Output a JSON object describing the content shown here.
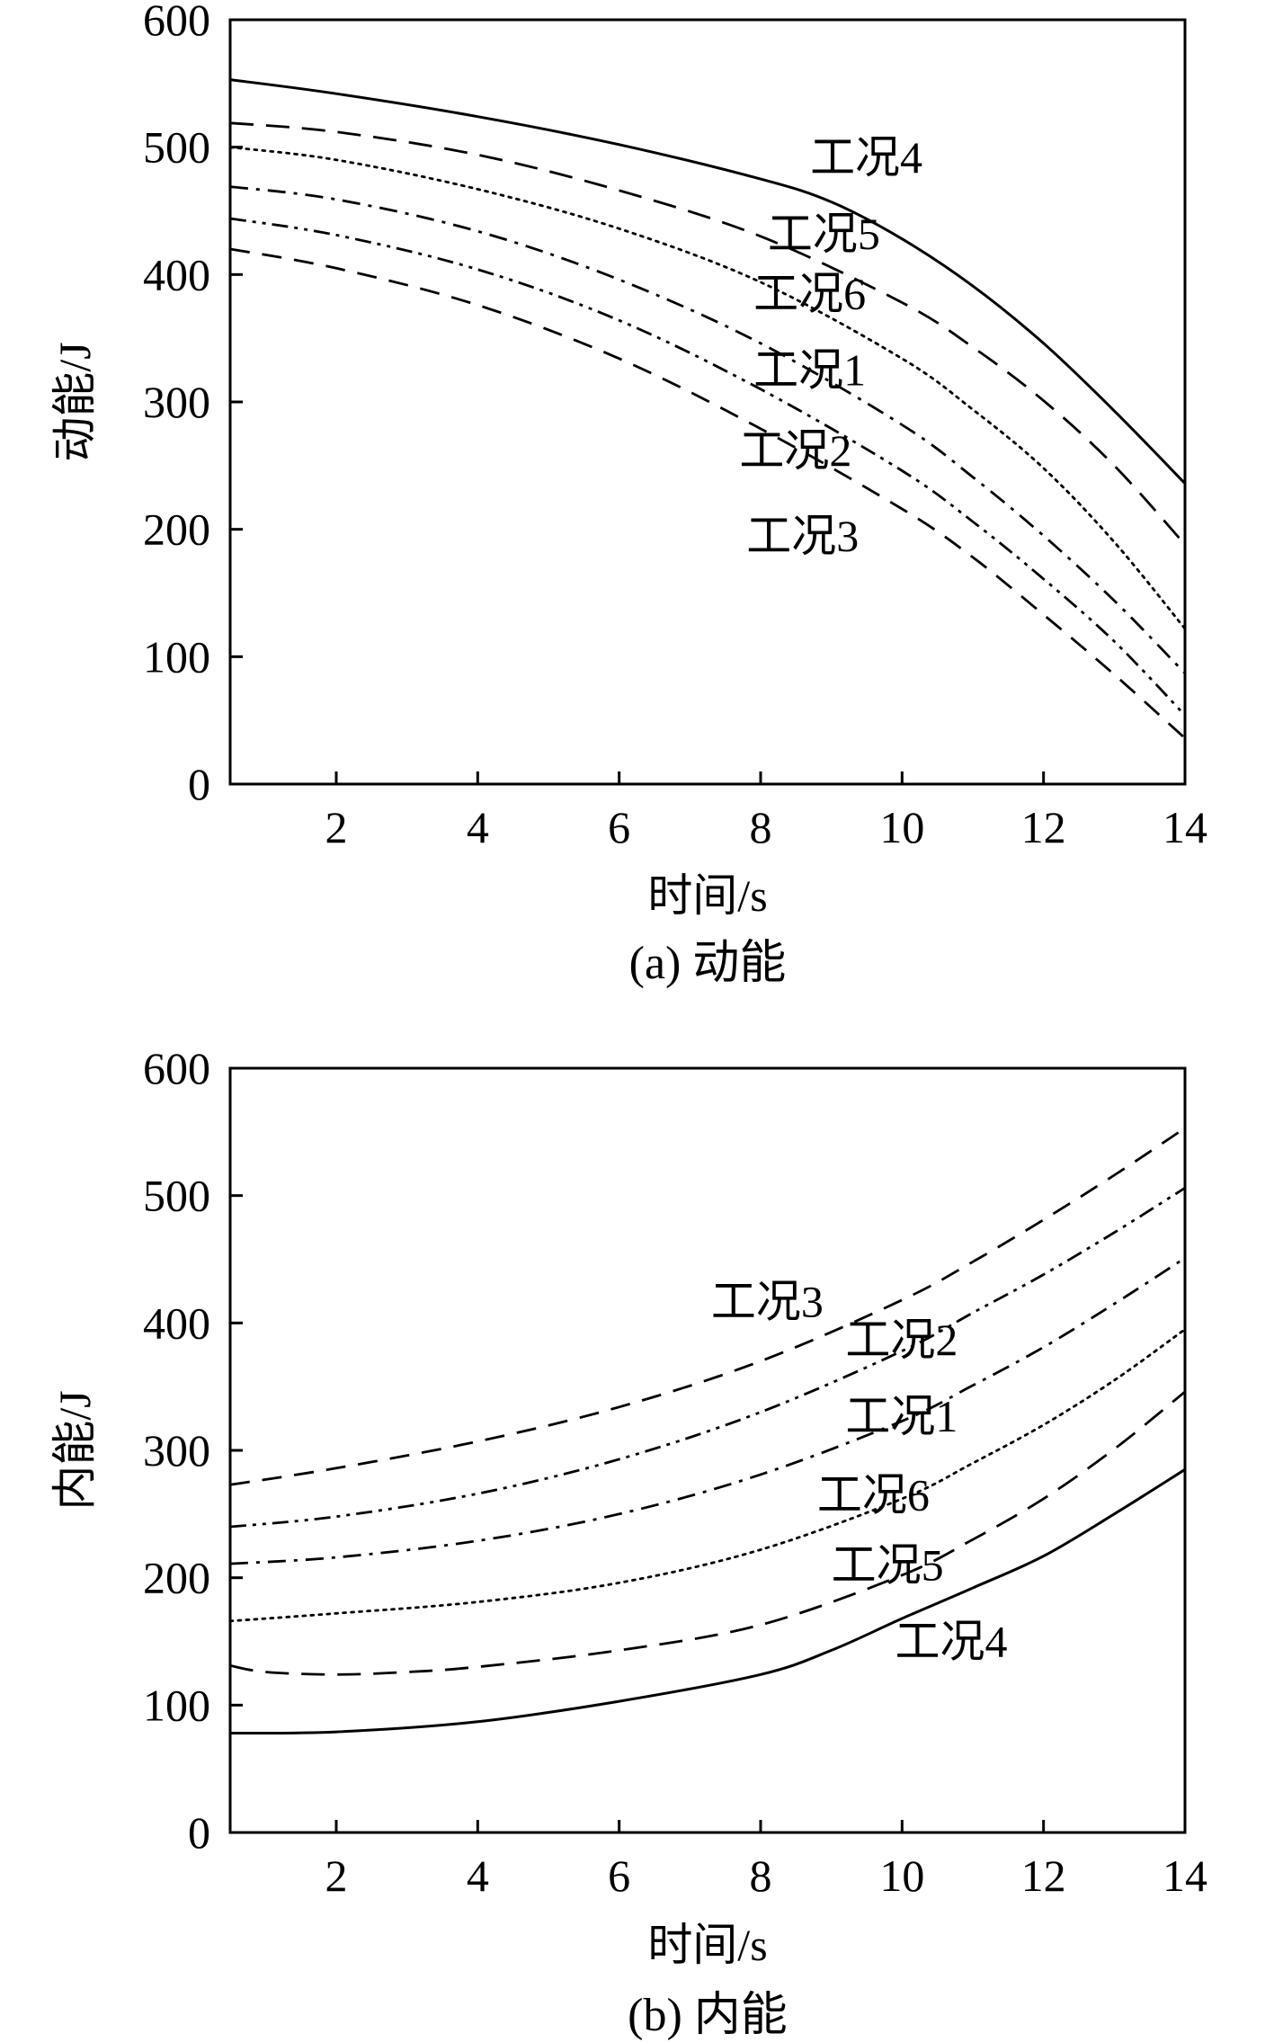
{
  "chart_data": [
    {
      "type": "line",
      "title": "",
      "caption": "(a) 动能",
      "xlabel": "时间/s",
      "ylabel": "动能/J",
      "xlim": [
        0.5,
        14
      ],
      "ylim": [
        0,
        600
      ],
      "xticks": [
        "2",
        "4",
        "6",
        "8",
        "10",
        "12",
        "14"
      ],
      "yticks": [
        "0",
        "100",
        "200",
        "300",
        "400",
        "500",
        "600"
      ],
      "grid": false,
      "series": [
        {
          "name": "工况4",
          "dash": "solid",
          "x": [
            0.5,
            2,
            4,
            6,
            8,
            9,
            10,
            11,
            12,
            13,
            14
          ],
          "y": [
            553,
            542,
            524,
            502,
            475,
            457,
            428,
            391,
            346,
            293,
            236
          ]
        },
        {
          "name": "工况5",
          "dash": "dashed",
          "x": [
            0.5,
            2,
            4,
            6,
            8,
            10,
            11,
            12,
            13,
            14
          ],
          "y": [
            519,
            512,
            494,
            466,
            430,
            378,
            343,
            301,
            250,
            188
          ]
        },
        {
          "name": "工况6",
          "dash": "dotted",
          "x": [
            0.5,
            2,
            4,
            6,
            8,
            10,
            11,
            12,
            13,
            14
          ],
          "y": [
            500,
            490,
            467,
            436,
            394,
            334,
            294,
            248,
            190,
            122
          ]
        },
        {
          "name": "工况1",
          "dash": "dashdot",
          "x": [
            0.5,
            2,
            4,
            6,
            8,
            10,
            11,
            12,
            13,
            14
          ],
          "y": [
            469,
            459,
            434,
            396,
            346,
            282,
            241,
            195,
            144,
            87
          ]
        },
        {
          "name": "工况2",
          "dash": "dashdotdot",
          "x": [
            0.5,
            2,
            4,
            6,
            8,
            10,
            11,
            12,
            13,
            14
          ],
          "y": [
            444,
            431,
            404,
            364,
            310,
            246,
            206,
            161,
            112,
            54
          ]
        },
        {
          "name": "工况3",
          "dash": "longdash",
          "x": [
            0.5,
            2,
            4,
            6,
            8,
            10,
            11,
            12,
            13,
            14
          ],
          "y": [
            420,
            405,
            376,
            334,
            279,
            216,
            178,
            133,
            86,
            36
          ]
        }
      ],
      "labels": [
        {
          "text": "工况4",
          "x": 8.7,
          "y": 480
        },
        {
          "text": "工况5",
          "x": 8.1,
          "y": 420
        },
        {
          "text": "工况6",
          "x": 7.9,
          "y": 373
        },
        {
          "text": "工况1",
          "x": 7.9,
          "y": 313
        },
        {
          "text": "工况2",
          "x": 7.7,
          "y": 250
        },
        {
          "text": "工况3",
          "x": 7.8,
          "y": 183
        }
      ]
    },
    {
      "type": "line",
      "title": "",
      "caption": "(b) 内能",
      "xlabel": "时间/s",
      "ylabel": "内能/J",
      "xlim": [
        0.5,
        14
      ],
      "ylim": [
        0,
        600
      ],
      "xticks": [
        "2",
        "4",
        "6",
        "8",
        "10",
        "12",
        "14"
      ],
      "yticks": [
        "0",
        "100",
        "200",
        "300",
        "400",
        "500",
        "600"
      ],
      "grid": false,
      "series": [
        {
          "name": "工况3",
          "dash": "longdash",
          "x": [
            0.5,
            2,
            4,
            6,
            8,
            10,
            11,
            12,
            13,
            14
          ],
          "y": [
            273,
            286,
            307,
            334,
            370,
            418,
            448,
            481,
            516,
            553
          ]
        },
        {
          "name": "工况2",
          "dash": "dashdotdot",
          "x": [
            0.5,
            2,
            4,
            6,
            8,
            10,
            11,
            12,
            13,
            14
          ],
          "y": [
            240,
            248,
            266,
            293,
            330,
            378,
            408,
            438,
            471,
            506
          ]
        },
        {
          "name": "工况1",
          "dash": "dashdot",
          "x": [
            0.5,
            2,
            4,
            6,
            8,
            10,
            11,
            12,
            13,
            14
          ],
          "y": [
            211,
            216,
            229,
            250,
            281,
            323,
            351,
            381,
            415,
            451
          ]
        },
        {
          "name": "工况6",
          "dash": "dotted",
          "x": [
            0.5,
            2,
            4,
            6,
            8,
            10,
            11,
            12,
            13,
            14
          ],
          "y": [
            166,
            172,
            181,
            196,
            222,
            262,
            290,
            320,
            355,
            395
          ]
        },
        {
          "name": "工况5",
          "dash": "dashed",
          "x": [
            0.5,
            1,
            2,
            3,
            4,
            6,
            8,
            10,
            11,
            12,
            13,
            14
          ],
          "y": [
            131,
            126,
            124,
            126,
            130,
            143,
            163,
            202,
            230,
            262,
            301,
            346
          ]
        },
        {
          "name": "工况4",
          "dash": "solid",
          "x": [
            0.5,
            2,
            4,
            6,
            8,
            9,
            10,
            11,
            12,
            13,
            14
          ],
          "y": [
            78,
            79,
            87,
            103,
            124,
            143,
            168,
            192,
            217,
            250,
            285
          ]
        }
      ],
      "labels": [
        {
          "text": "工况3",
          "x": 7.3,
          "y": 405
        },
        {
          "text": "工况2",
          "x": 9.2,
          "y": 375
        },
        {
          "text": "工况1",
          "x": 9.2,
          "y": 315
        },
        {
          "text": "工况6",
          "x": 8.8,
          "y": 253
        },
        {
          "text": "工况5",
          "x": 9.0,
          "y": 198
        },
        {
          "text": "工况4",
          "x": 9.9,
          "y": 138
        }
      ]
    }
  ]
}
